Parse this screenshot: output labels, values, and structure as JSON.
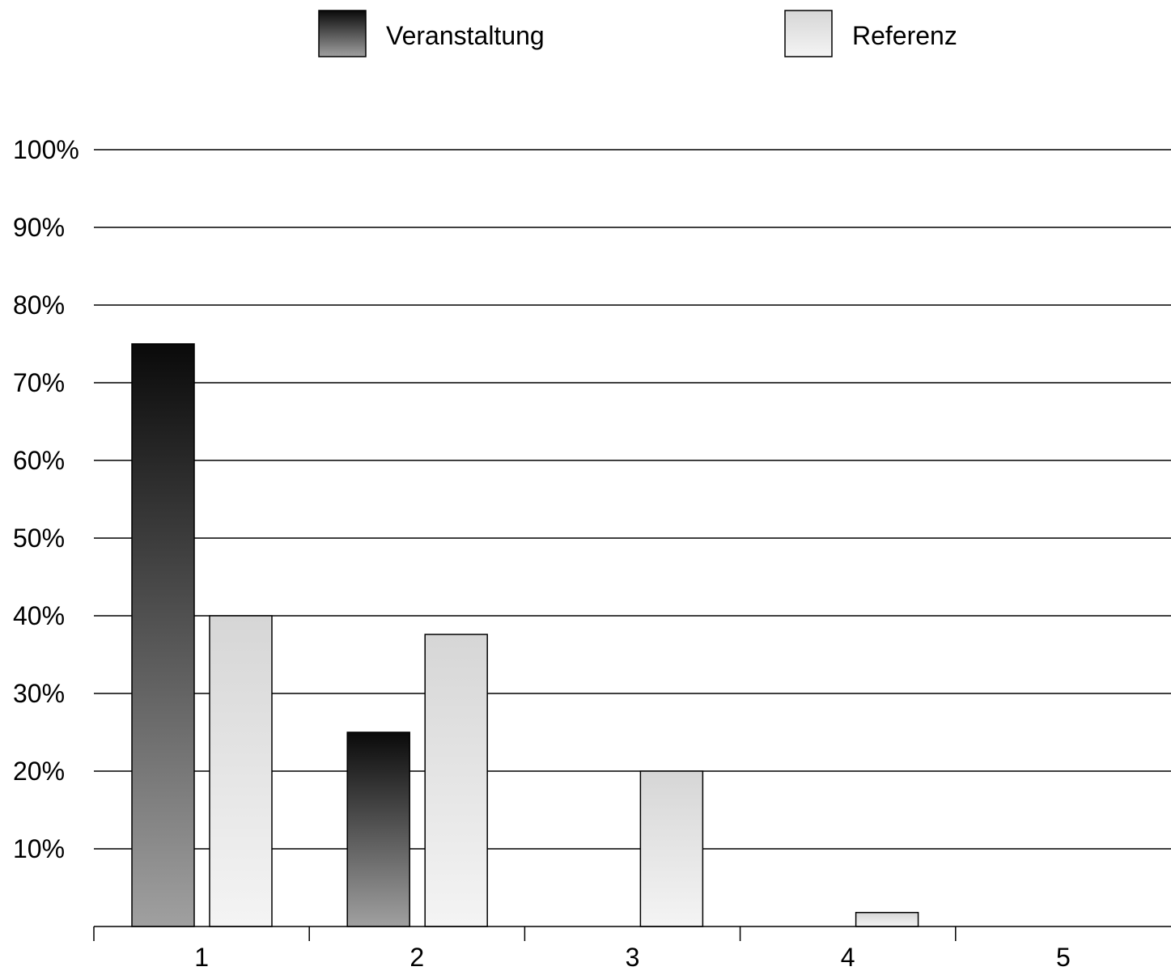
{
  "chart_data": {
    "type": "bar",
    "categories": [
      "1",
      "2",
      "3",
      "4",
      "5"
    ],
    "series": [
      {
        "name": "Veranstaltung",
        "values": [
          75,
          25,
          0,
          0,
          0
        ]
      },
      {
        "name": "Referenz",
        "values": [
          40,
          37.6,
          20,
          1.8,
          0
        ]
      }
    ],
    "ylim": [
      0,
      100
    ],
    "yticks": [
      10,
      20,
      30,
      40,
      50,
      60,
      70,
      80,
      90,
      100
    ],
    "ytick_labels": [
      "10%",
      "20%",
      "30%",
      "40%",
      "50%",
      "60%",
      "70%",
      "80%",
      "90%",
      "100%"
    ],
    "grid": true,
    "legend_position": "top",
    "colors": {
      "veranstaltung_top": "#0a0a0a",
      "veranstaltung_bottom": "#a0a0a0",
      "referenz_top": "#d6d6d6",
      "referenz_bottom": "#f4f4f4"
    }
  }
}
